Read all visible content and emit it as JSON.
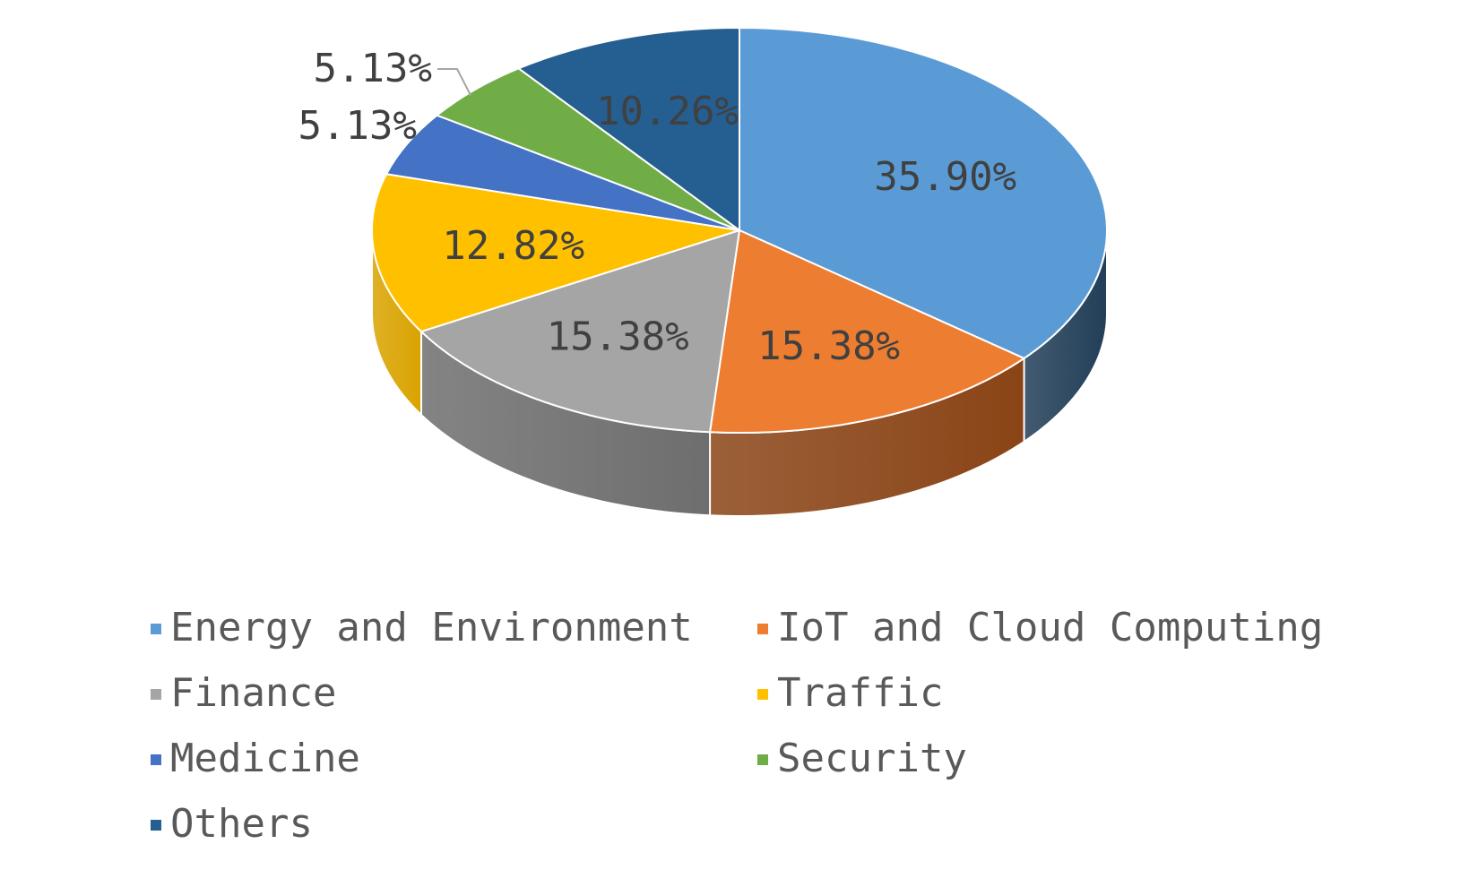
{
  "chart_data": {
    "type": "pie",
    "style": "3d",
    "categories": [
      "Energy and Environment",
      "IoT and Cloud Computing",
      "Finance",
      "Traffic",
      "Medicine",
      "Security",
      "Others"
    ],
    "values": [
      35.9,
      15.38,
      15.38,
      12.82,
      5.13,
      5.13,
      10.26
    ],
    "labels": [
      "35.90%",
      "15.38%",
      "15.38%",
      "12.82%",
      "5.13%",
      "5.13%",
      "10.26%"
    ],
    "colors": [
      "#5B9BD5",
      "#ED7D31",
      "#A5A5A5",
      "#FFC000",
      "#4472C4",
      "#70AD47",
      "#255E91"
    ],
    "side_colors": [
      "#223E58",
      "#8A4416",
      "#6E6E6E",
      "#D9A300",
      "#2A4A8A",
      "#3F6B28",
      "#163A5C"
    ],
    "legend_position": "bottom"
  }
}
